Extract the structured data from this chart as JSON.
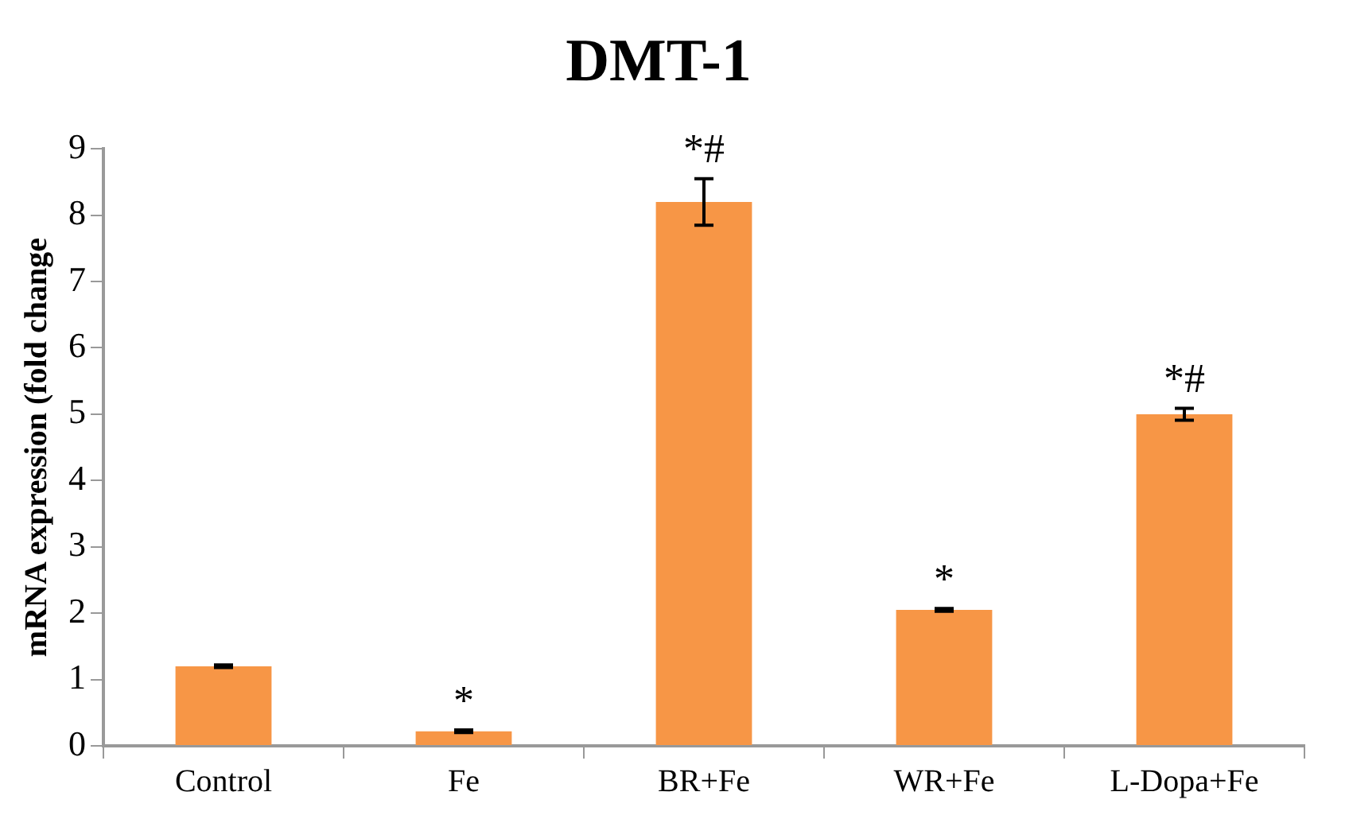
{
  "chart_data": {
    "type": "bar",
    "title": "DMT-1",
    "ylabel": "mRNA expression (fold change",
    "categories": [
      "Control",
      "Fe",
      "BR+Fe",
      "WR+Fe",
      "L-Dopa+Fe"
    ],
    "values": [
      1.2,
      0.22,
      8.2,
      2.05,
      5.0
    ],
    "errors": [
      0.02,
      0.02,
      0.35,
      0.02,
      0.09
    ],
    "color": "#f79646",
    "ylim": [
      0,
      9
    ],
    "yticks": [
      0,
      1,
      2,
      3,
      4,
      5,
      6,
      7,
      8,
      9
    ],
    "grid": false,
    "legend": false,
    "annotations": [
      {
        "text": "*",
        "x": "Fe",
        "y": 0.24
      },
      {
        "text": "*#",
        "x": "BR+Fe",
        "y": 8.55
      },
      {
        "text": "*",
        "x": "WR+Fe",
        "y": 2.07
      },
      {
        "text": "*#",
        "x": "L-Dopa+Fe",
        "y": 5.09
      }
    ]
  }
}
